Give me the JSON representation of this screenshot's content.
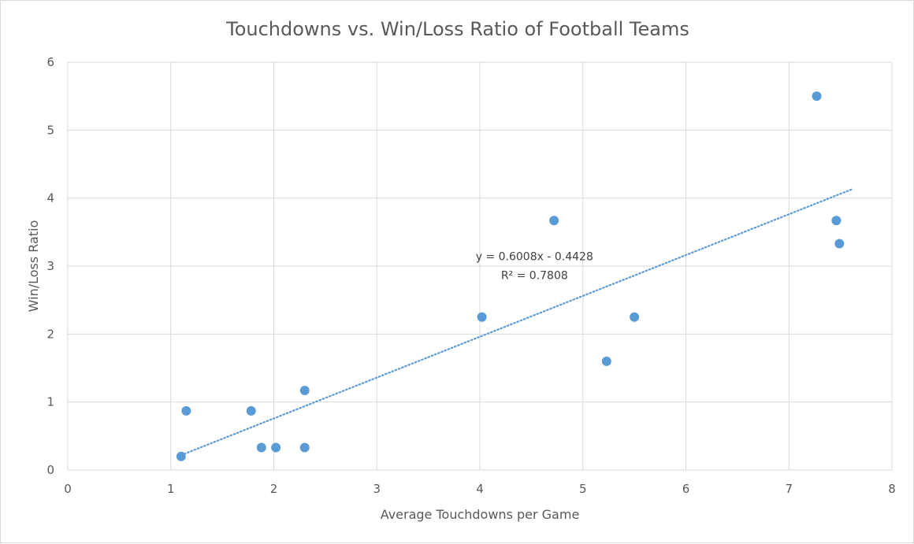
{
  "chart_data": {
    "type": "scatter",
    "title": "Touchdowns vs. Win/Loss Ratio of Football Teams",
    "xlabel": "Average Touchdowns per Game",
    "ylabel": "Win/Loss Ratio",
    "xlim": [
      0,
      8
    ],
    "ylim": [
      0,
      6
    ],
    "x_ticks": [
      0,
      1,
      2,
      3,
      4,
      5,
      6,
      7,
      8
    ],
    "y_ticks": [
      0,
      1,
      2,
      3,
      4,
      5,
      6
    ],
    "grid": true,
    "series": [
      {
        "color": "#5b9bd5",
        "points": [
          {
            "x": 1.1,
            "y": 0.2
          },
          {
            "x": 1.15,
            "y": 0.87
          },
          {
            "x": 1.78,
            "y": 0.87
          },
          {
            "x": 1.88,
            "y": 0.33
          },
          {
            "x": 2.02,
            "y": 0.33
          },
          {
            "x": 2.3,
            "y": 0.33
          },
          {
            "x": 2.3,
            "y": 1.17
          },
          {
            "x": 4.02,
            "y": 2.25
          },
          {
            "x": 4.72,
            "y": 3.67
          },
          {
            "x": 5.23,
            "y": 1.6
          },
          {
            "x": 5.5,
            "y": 2.25
          },
          {
            "x": 7.27,
            "y": 5.5
          },
          {
            "x": 7.46,
            "y": 3.67
          },
          {
            "x": 7.49,
            "y": 3.33
          }
        ]
      }
    ],
    "trendline": {
      "type": "linear",
      "slope": 0.6008,
      "intercept": -0.4428,
      "x_range": [
        1.1,
        7.49
      ],
      "color": "#5b9bd5",
      "style": "dotted",
      "equation_label": "y = 0.6008x - 0.4428",
      "r2_label": "R² = 0.7808"
    }
  }
}
